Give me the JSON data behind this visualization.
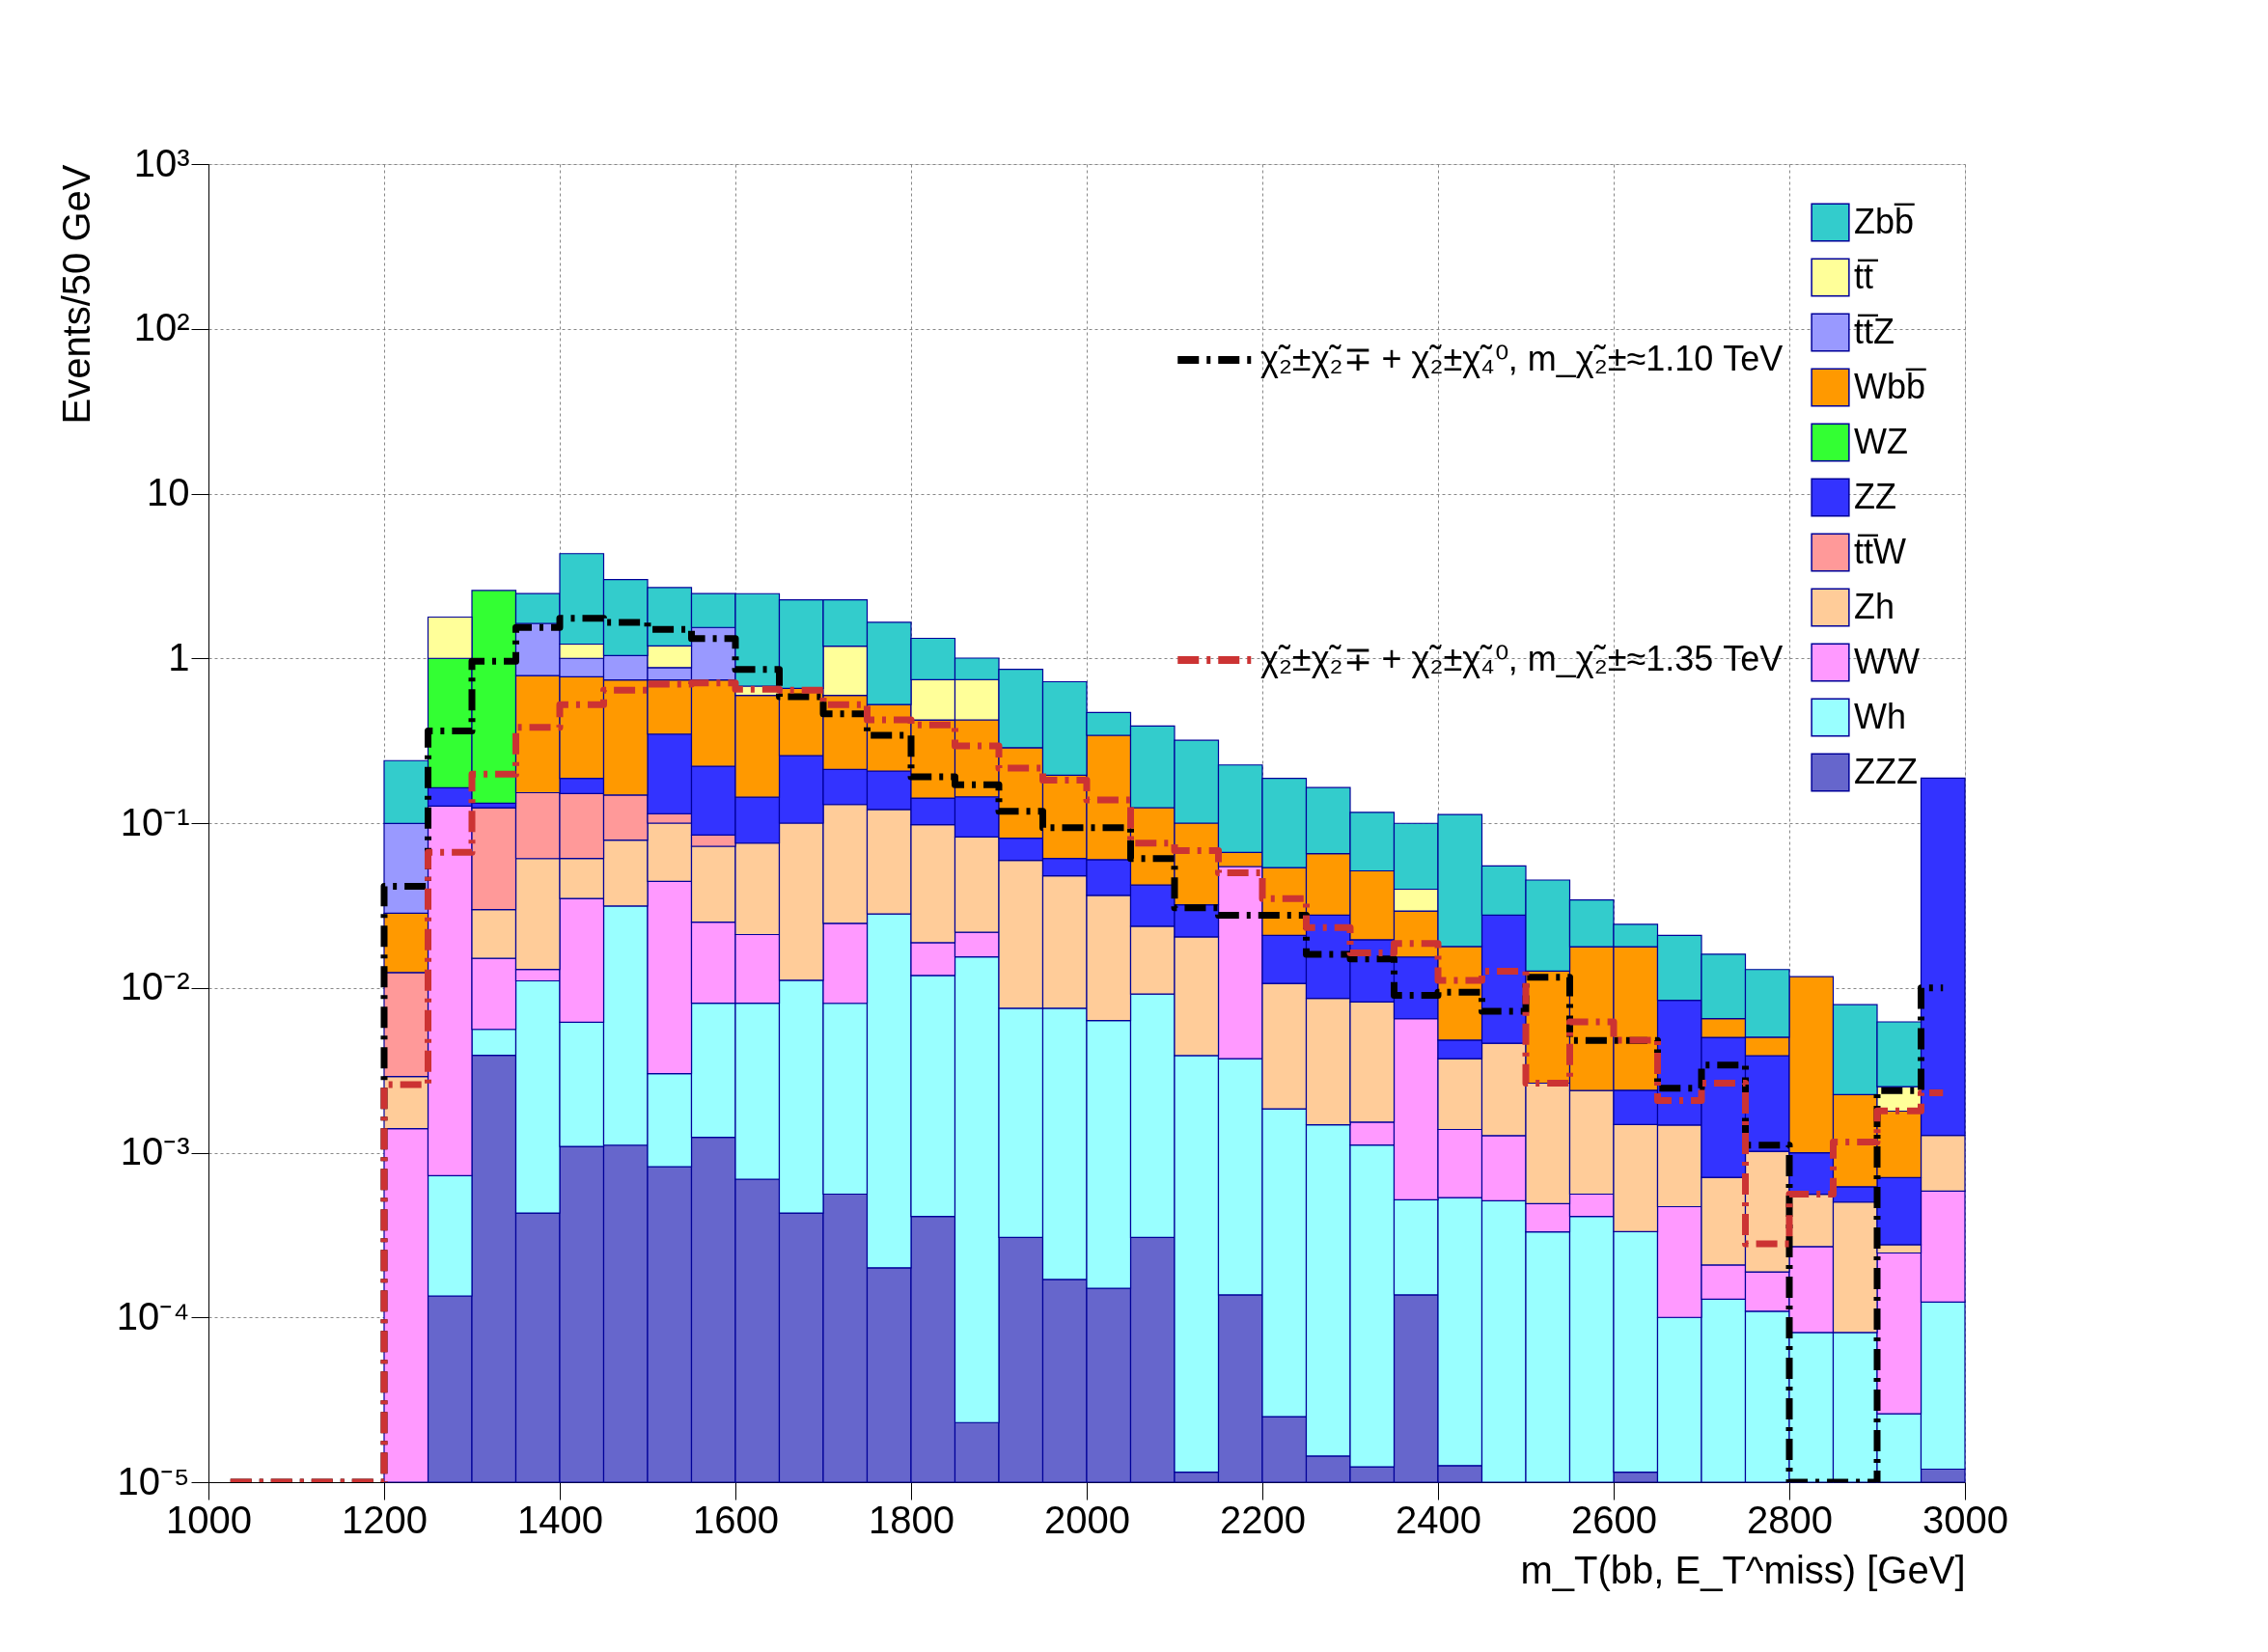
{
  "chart_data": {
    "type": "bar",
    "xlabel": "m_T(bb, E_T^miss) [GeV]",
    "ylabel": "Events/50 GeV",
    "x": [
      1025,
      1075,
      1125,
      1175,
      1225,
      1275,
      1325,
      1375,
      1425,
      1475,
      1525,
      1575,
      1625,
      1675,
      1725,
      1775,
      1825,
      1875,
      1925,
      1975,
      2025,
      2075,
      2125,
      2175,
      2225,
      2275,
      2325,
      2375,
      2425,
      2475,
      2525,
      2575,
      2625,
      2675,
      2725,
      2775,
      2825,
      2875,
      2925,
      2975
    ],
    "stacked": true,
    "log": "y",
    "grid": true,
    "legend": "top right",
    "xlim": [
      1000,
      3000
    ],
    "xticks": [
      1000,
      1200,
      1400,
      1600,
      1800,
      2000,
      2200,
      2400,
      2600,
      2800,
      3000
    ],
    "ylim": [
      1e-05,
      1000
    ],
    "yticks": [
      {
        "value": 1e-05,
        "label": "10⁻⁵"
      },
      {
        "value": 0.0001,
        "label": "10⁻⁴"
      },
      {
        "value": 0.001,
        "label": "10⁻³"
      },
      {
        "value": 0.01,
        "label": "10⁻²"
      },
      {
        "value": 0.1,
        "label": "10⁻¹"
      },
      1,
      10,
      {
        "value": 100,
        "label": "10²"
      },
      {
        "value": 1000,
        "label": "10³"
      }
    ],
    "series": [
      {
        "name": "ZZZ",
        "color": "#6666cc",
        "values": [
          null,
          null,
          null,
          null,
          null,
          0.000135,
          0.0039,
          0.00043,
          0.00109,
          0.00111,
          0.00082,
          0.00124,
          0.00069,
          0.00043,
          0.00056,
          0.0002,
          0.00041,
          2.3e-05,
          0.000306,
          0.00017,
          0.00015,
          0.000306,
          1.15e-05,
          0.000137,
          2.5e-05,
          1.44e-05,
          1.24e-05,
          0.000137,
          1.26e-05,
          null,
          null,
          null,
          1.15e-05,
          null,
          null,
          null,
          null,
          null,
          null,
          1.2e-05
        ]
      },
      {
        "name": "Wh",
        "color": "#99ffff",
        "values": [
          null,
          null,
          null,
          null,
          null,
          0.00059,
          0.0017,
          0.0106,
          0.0051,
          0.0303,
          0.0022,
          0.00683,
          0.00738,
          0.0107,
          0.0075,
          0.0279,
          0.0115,
          0.0154,
          0.00722,
          0.00736,
          0.00619,
          0.00887,
          0.00387,
          0.00358,
          0.00182,
          0.00146,
          0.0011,
          0.00038,
          0.00052,
          0.00051,
          0.00033,
          0.00041,
          0.00032,
          0.0001,
          0.000129,
          0.000109,
          8.1e-05,
          8.1e-05,
          2.6e-05,
          0.000112
        ]
      },
      {
        "name": "WW",
        "color": "#ff99ff",
        "values": [
          null,
          null,
          null,
          null,
          0.0014,
          0.126,
          0.0095,
          0.0019,
          0.0287,
          null,
          0.0413,
          0.017,
          0.013,
          null,
          0.0166,
          null,
          0.0069,
          0.0063,
          null,
          null,
          null,
          null,
          null,
          0.0508,
          null,
          null,
          0.00042,
          0.00598,
          0.00085,
          0.00076,
          0.00016,
          0.00015,
          null,
          0.00037,
          7.9e-05,
          8e-05,
          0.000188,
          null,
          0.00022,
          0.00046
        ]
      },
      {
        "name": "Zh",
        "color": "#ffcc99",
        "values": [
          null,
          null,
          null,
          null,
          0.0015,
          null,
          0.0148,
          0.048,
          0.0262,
          0.0475,
          0.0557,
          0.0473,
          0.0545,
          0.0889,
          0.105,
          0.093,
          0.079,
          0.0607,
          0.0519,
          0.0404,
          0.0301,
          0.0145,
          0.0165,
          null,
          0.0088,
          0.00716,
          0.00667,
          null,
          0.00234,
          0.00334,
          0.00215,
          0.00182,
          0.00115,
          0.001,
          0.0005,
          0.00083,
          0.00029,
          0.00042,
          3e-05,
          0.00069
        ]
      },
      {
        "name": "tt̅W",
        "color": "#ff9999",
        "values": [
          null,
          null,
          null,
          null,
          0.0095,
          null,
          0.094,
          0.092,
          0.09,
          0.069,
          0.014,
          0.0122,
          null,
          null,
          null,
          null,
          null,
          null,
          null,
          null,
          null,
          null,
          null,
          null,
          null,
          null,
          null,
          null,
          null,
          null,
          null,
          null,
          null,
          null,
          null,
          null,
          null,
          null,
          null,
          null
        ]
      },
      {
        "name": "ZZ",
        "color": "#3333ff",
        "values": [
          null,
          null,
          null,
          null,
          null,
          0.037,
          0.008,
          null,
          0.036,
          null,
          0.233,
          0.137,
          0.068,
          0.157,
          0.082,
          0.086,
          0.044,
          0.062,
          0.0216,
          0.0131,
          0.0236,
          0.0184,
          0.0116,
          null,
          0.0102,
          0.019,
          0.0114,
          0.0089,
          0.0011,
          0.023,
          null,
          null,
          0.00091,
          0.00694,
          0.0043,
          0.00286,
          0.00044,
          0.00012,
          0.00043,
          0.186
        ]
      },
      {
        "name": "WZ",
        "color": "#33ff33",
        "values": [
          null,
          null,
          null,
          null,
          null,
          0.836,
          2.45,
          null,
          null,
          null,
          null,
          null,
          null,
          null,
          null,
          null,
          null,
          null,
          null,
          null,
          null,
          null,
          null,
          null,
          null,
          null,
          null,
          null,
          null,
          null,
          null,
          null,
          null,
          null,
          null,
          null,
          null,
          null,
          null,
          null
        ]
      },
      {
        "name": "Wbb̅",
        "color": "#ff9900",
        "values": [
          null,
          null,
          null,
          null,
          0.016,
          null,
          null,
          0.632,
          0.585,
          0.592,
          0.393,
          0.518,
          0.453,
          0.4,
          0.385,
          0.317,
          0.281,
          0.279,
          0.206,
          0.134,
          0.281,
          0.082,
          0.068,
          0.0119,
          0.0328,
          0.0377,
          0.0317,
          0.0139,
          0.013,
          null,
          0.01,
          0.0154,
          0.0154,
          null,
          0.0015,
          0.00114,
          0.0107,
          0.00163,
          0.00108,
          null
        ]
      },
      {
        "name": "tt̅Z",
        "color": "#9999ff",
        "values": [
          null,
          null,
          null,
          null,
          0.071,
          null,
          null,
          0.845,
          0.228,
          0.3,
          0.139,
          0.8,
          null,
          null,
          null,
          null,
          null,
          null,
          null,
          null,
          null,
          null,
          null,
          null,
          null,
          null,
          null,
          null,
          null,
          null,
          null,
          null,
          null,
          null,
          null,
          null,
          null,
          null,
          null,
          null
        ]
      },
      {
        "name": "tt̅",
        "color": "#ffff99",
        "values": [
          null,
          null,
          null,
          null,
          null,
          0.78,
          null,
          null,
          0.22,
          null,
          0.31,
          null,
          0.082,
          null,
          0.59,
          null,
          0.32,
          0.32,
          null,
          null,
          null,
          null,
          null,
          null,
          null,
          null,
          null,
          0.0104,
          null,
          null,
          null,
          null,
          null,
          null,
          null,
          null,
          null,
          null,
          0.00073,
          null
        ]
      },
      {
        "name": "Zbb̅",
        "color": "#33cccc",
        "values": [
          null,
          null,
          null,
          null,
          0.14,
          null,
          null,
          0.84,
          3.1,
          1.97,
          1.5,
          0.93,
          1.79,
          1.61,
          1.08,
          1.13,
          0.58,
          0.26,
          0.57,
          0.526,
          0.128,
          0.264,
          0.218,
          0.159,
          0.133,
          0.099,
          0.065,
          0.06,
          0.095,
          0.0274,
          0.0325,
          0.0164,
          0.0065,
          0.0124,
          0.0095,
          0.0079,
          null,
          0.00565,
          0.0037,
          null
        ]
      },
      {
        "name": "χ̃₂±χ̃₂∓ + χ̃₂±χ̃₄⁰, m_χ̃₂±≈1.10 TeV",
        "type": "step",
        "line_style": "dashed",
        "color": "#000000",
        "values": [
          1e-05,
          1e-05,
          1e-05,
          1e-05,
          0.0414,
          0.362,
          0.96,
          1.54,
          1.75,
          1.65,
          1.5,
          1.32,
          0.857,
          0.586,
          0.461,
          0.341,
          0.191,
          0.171,
          0.118,
          0.0938,
          0.0938,
          0.061,
          0.0306,
          0.0276,
          0.0276,
          0.016,
          0.015,
          0.009,
          0.0094,
          0.0072,
          0.0116,
          0.0048,
          0.0048,
          0.00246,
          0.0034,
          0.00111,
          1e-05,
          1e-05,
          0.00238,
          0.01
        ]
      },
      {
        "name": "χ̃₂±χ̃₂∓ + χ̃₂±χ̃₄⁰, m_χ̃₂±≈1.35 TeV",
        "type": "step",
        "line_style": "dashed",
        "color": "#cc3333",
        "values": [
          1e-05,
          1e-05,
          1e-05,
          1e-05,
          0.00259,
          0.0664,
          0.198,
          0.381,
          0.524,
          0.64,
          0.697,
          0.71,
          0.65,
          0.64,
          0.524,
          0.423,
          0.395,
          0.294,
          0.216,
          0.182,
          0.138,
          0.0756,
          0.0682,
          0.05,
          0.0348,
          0.0232,
          0.0163,
          0.0186,
          0.0111,
          0.0126,
          0.00264,
          0.00622,
          0.00481,
          0.00207,
          0.00264,
          0.00028,
          0.00056,
          0.00116,
          0.00179,
          0.00231
        ]
      }
    ]
  }
}
